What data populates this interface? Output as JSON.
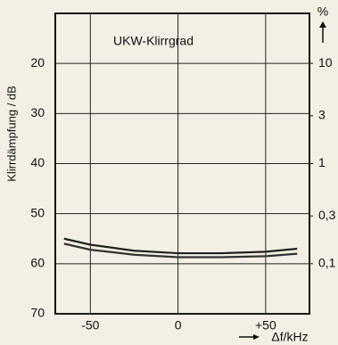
{
  "chart_data": {
    "type": "line",
    "title": "UKW-Klirrgrad",
    "ylabel": "Klirrdämpfung / dB",
    "y2label": "%",
    "xlabel": "Δf/kHz",
    "x": [
      -65,
      -50,
      -25,
      0,
      25,
      50,
      68
    ],
    "series": [
      {
        "color": "#222222",
        "values": [
          55,
          56.2,
          57.4,
          57.9,
          57.9,
          57.6,
          57.0
        ]
      },
      {
        "color": "#333333",
        "values": [
          56,
          57.2,
          58.2,
          58.7,
          58.7,
          58.5,
          58.0
        ]
      }
    ],
    "xlim": [
      -70,
      75
    ],
    "xticks": [
      -50,
      0,
      {
        "value": 50,
        "label": "+50"
      }
    ],
    "ylim": [
      70,
      10
    ],
    "yticks": [
      20,
      30,
      40,
      50,
      60,
      70
    ],
    "y2lim": [
      0.0316,
      31.6
    ],
    "y2scale": "log",
    "y2ticks": [
      10,
      3,
      1,
      {
        "value": 0.3,
        "label": "0,3"
      },
      {
        "value": 0.1,
        "label": "0,1"
      }
    ],
    "grid": true
  }
}
